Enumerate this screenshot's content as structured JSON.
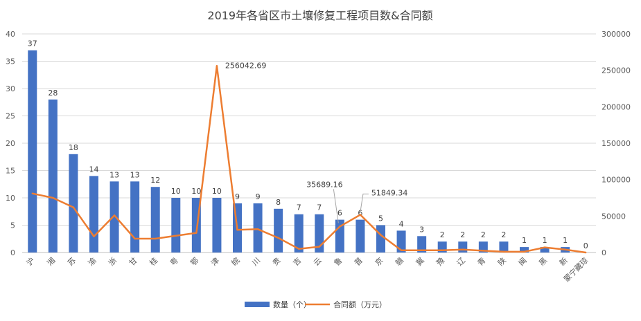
{
  "chart_data": {
    "type": "bar",
    "title": "2019年各省区市土壤修复工程项目数&合同额",
    "categories": [
      "沪",
      "湘",
      "苏",
      "渝",
      "浙",
      "甘",
      "桂",
      "粤",
      "鄂",
      "津",
      "皖",
      "川",
      "贵",
      "吉",
      "云",
      "鲁",
      "晋",
      "京",
      "赣",
      "冀",
      "豫",
      "辽",
      "青",
      "陕",
      "闽",
      "黑",
      "新",
      "蒙宁藏琼"
    ],
    "series": [
      {
        "name": "数量（个）",
        "type": "bar",
        "axis": "left",
        "color": "#4472C4",
        "values": [
          37,
          28,
          18,
          14,
          13,
          13,
          12,
          10,
          10,
          10,
          9,
          9,
          8,
          7,
          7,
          6,
          6,
          5,
          4,
          3,
          2,
          2,
          2,
          2,
          1,
          1,
          1,
          0
        ]
      },
      {
        "name": "合同额（万元）",
        "type": "line",
        "axis": "right",
        "color": "#ED7D31",
        "values": [
          81000,
          75000,
          62000,
          22000,
          51000,
          19000,
          19000,
          23000,
          27000,
          256042.69,
          31000,
          32000,
          20000,
          5000,
          8000,
          35689.16,
          51849.34,
          24000,
          3000,
          3000,
          3000,
          4000,
          2500,
          1000,
          1000,
          7000,
          4000,
          0
        ]
      }
    ],
    "labeled_points": [
      {
        "index": 9,
        "text": "256042.69"
      },
      {
        "index": 15,
        "text": "35689.16"
      },
      {
        "index": 16,
        "text": "51849.34"
      }
    ],
    "y_left": {
      "min": 0,
      "max": 40,
      "step": 5,
      "ticks": [
        "0",
        "5",
        "10",
        "15",
        "20",
        "25",
        "30",
        "35",
        "40"
      ]
    },
    "y_right": {
      "min": 0,
      "max": 300000,
      "step": 50000,
      "ticks": [
        "0",
        "50000",
        "100000",
        "150000",
        "200000",
        "250000",
        "300000"
      ]
    },
    "grid": true,
    "legend_position": "bottom"
  }
}
